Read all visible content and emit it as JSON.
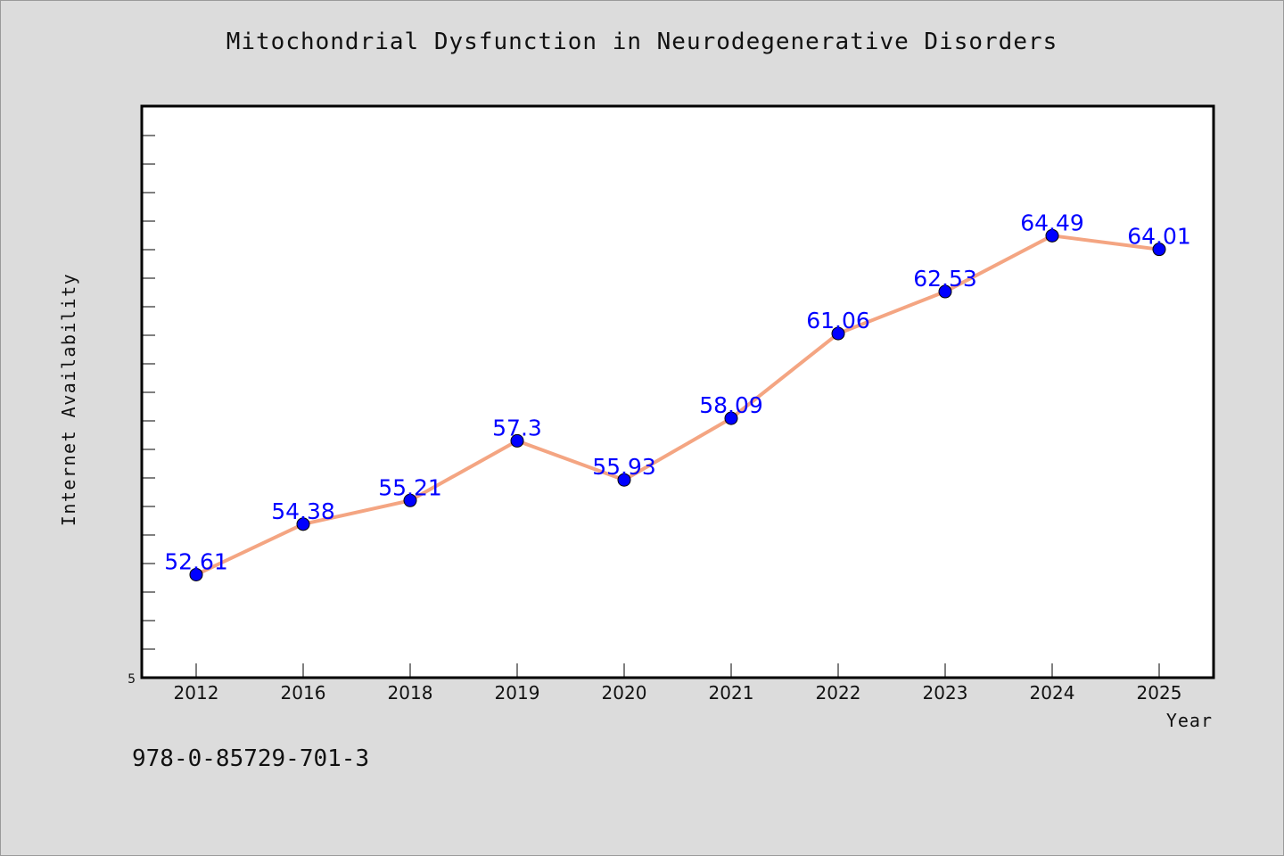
{
  "chart_data": {
    "type": "line",
    "title": "Mitochondrial Dysfunction in Neurodegenerative Disorders",
    "xlabel": "Year",
    "ylabel": "Internet Availability",
    "categories": [
      "2012",
      "2016",
      "2018",
      "2019",
      "2020",
      "2021",
      "2022",
      "2023",
      "2024",
      "2025"
    ],
    "series": [
      {
        "values": [
          52.61,
          54.38,
          55.21,
          57.3,
          55.93,
          58.09,
          61.06,
          62.53,
          64.49,
          64.01
        ],
        "data_labels": [
          "52.61",
          "54.38",
          "55.21",
          "57.3",
          "55.93",
          "58.09",
          "61.06",
          "62.53",
          "64.49",
          "64.01"
        ]
      }
    ],
    "ylim": [
      49.0,
      69.0
    ],
    "y_tick_labels": [
      "5"
    ],
    "grid": false,
    "legend": "none",
    "colors": {
      "line": "#f4a582",
      "marker": "#0000ff",
      "data_label": "#0000ff",
      "background": "#dcdcdc",
      "plot_background": "#ffffff"
    }
  },
  "footer": {
    "code": "978-0-85729-701-3"
  }
}
